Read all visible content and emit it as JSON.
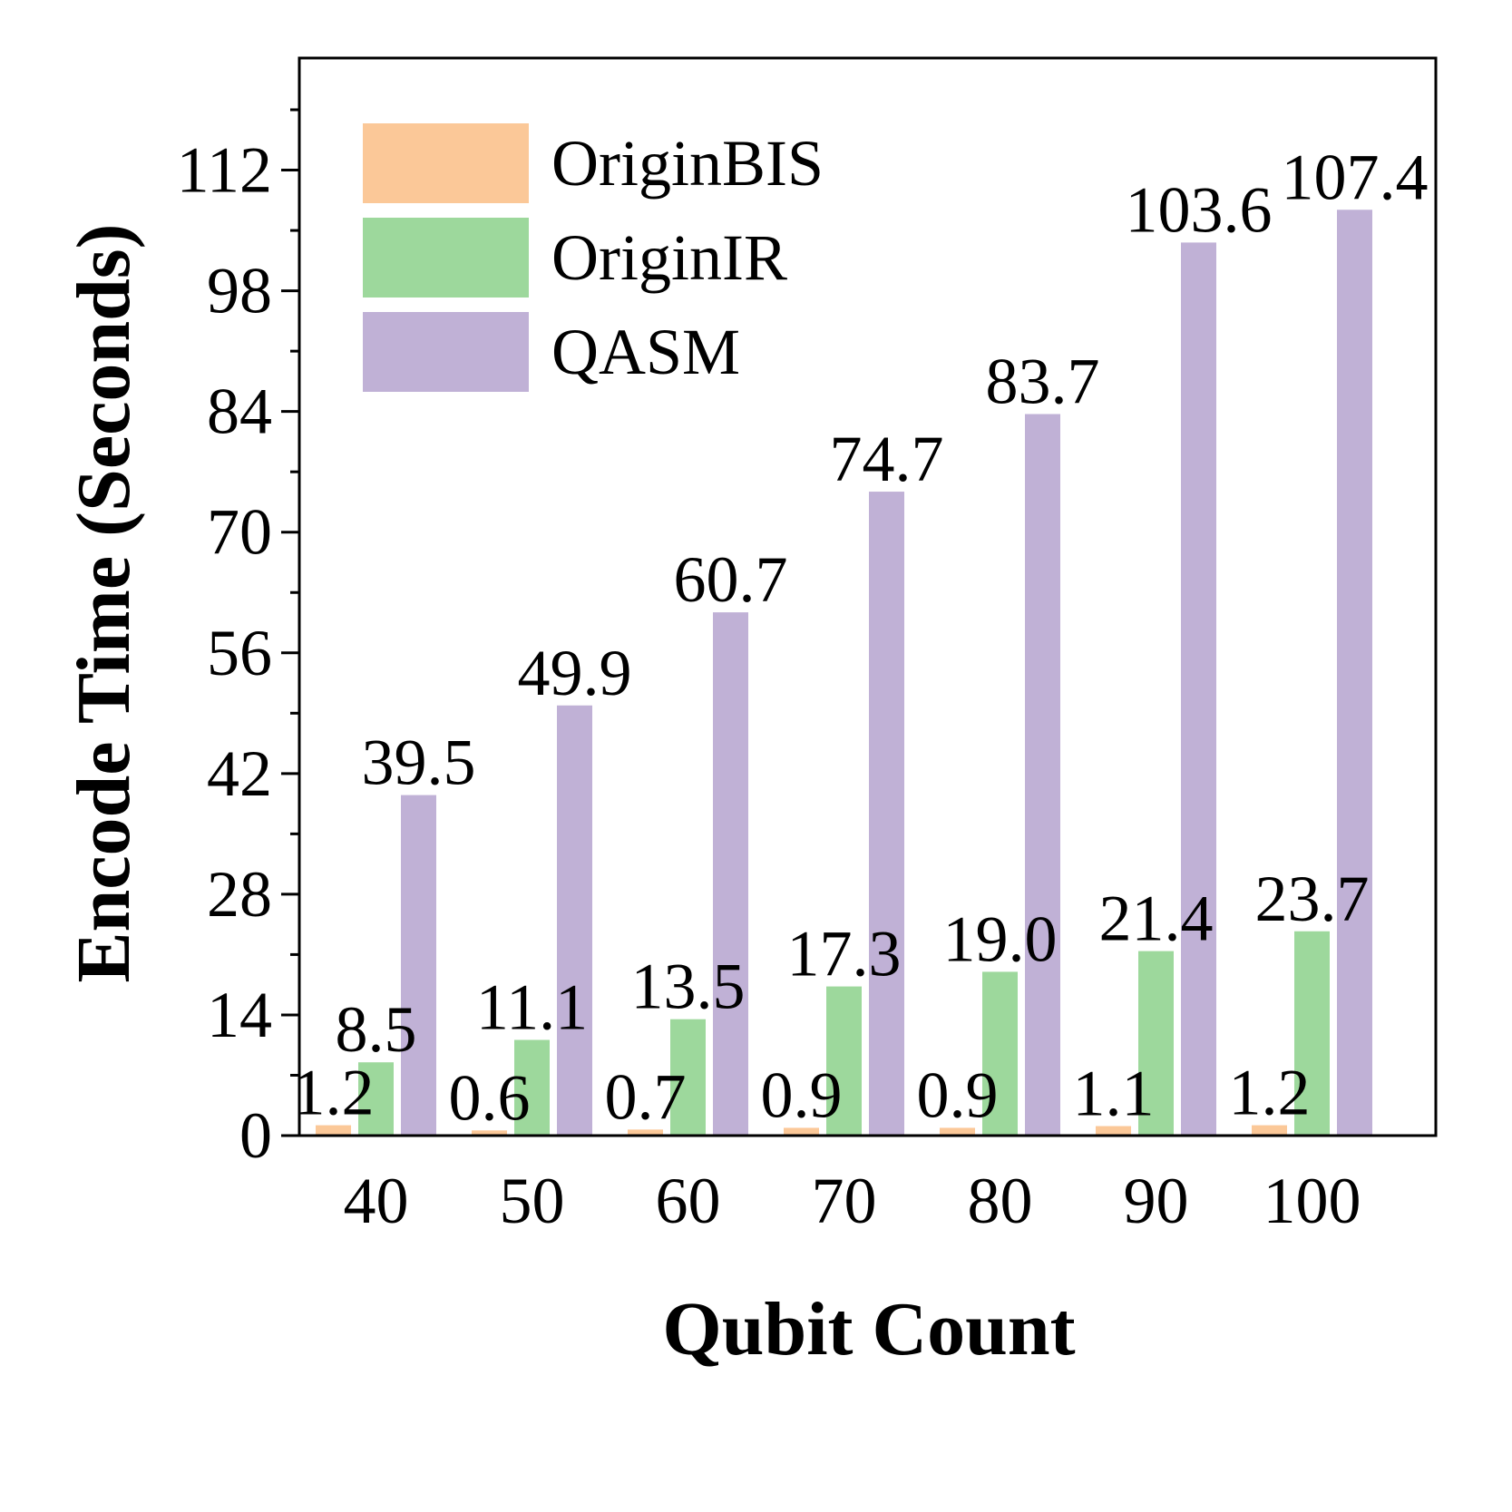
{
  "chart_data": {
    "type": "bar",
    "xlabel": "Qubit Count",
    "ylabel": "Encode Time (Seconds)",
    "categories": [
      "40",
      "50",
      "60",
      "70",
      "80",
      "90",
      "100"
    ],
    "ylim": [
      0,
      125
    ],
    "yticks": [
      "0",
      "14",
      "28",
      "42",
      "56",
      "70",
      "84",
      "98",
      "112"
    ],
    "grid": false,
    "legend_position": "top-left",
    "series": [
      {
        "name": "OriginBIS",
        "color": "#fbc898",
        "values": [
          1.2,
          0.6,
          0.7,
          0.9,
          0.9,
          1.1,
          1.2
        ],
        "labels": [
          "1.2",
          "0.6",
          "0.7",
          "0.9",
          "0.9",
          "1.1",
          "1.2"
        ]
      },
      {
        "name": "OriginIR",
        "color": "#9dd89c",
        "values": [
          8.5,
          11.1,
          13.5,
          17.3,
          19.0,
          21.4,
          23.7
        ],
        "labels": [
          "8.5",
          "11.1",
          "13.5",
          "17.3",
          "19.0",
          "21.4",
          "23.7"
        ]
      },
      {
        "name": "QASM",
        "color": "#c0b1d6",
        "values": [
          39.5,
          49.9,
          60.7,
          74.7,
          83.7,
          103.6,
          107.4
        ],
        "labels": [
          "39.5",
          "49.9",
          "60.7",
          "74.7",
          "83.7",
          "103.6",
          "107.4"
        ]
      }
    ]
  }
}
